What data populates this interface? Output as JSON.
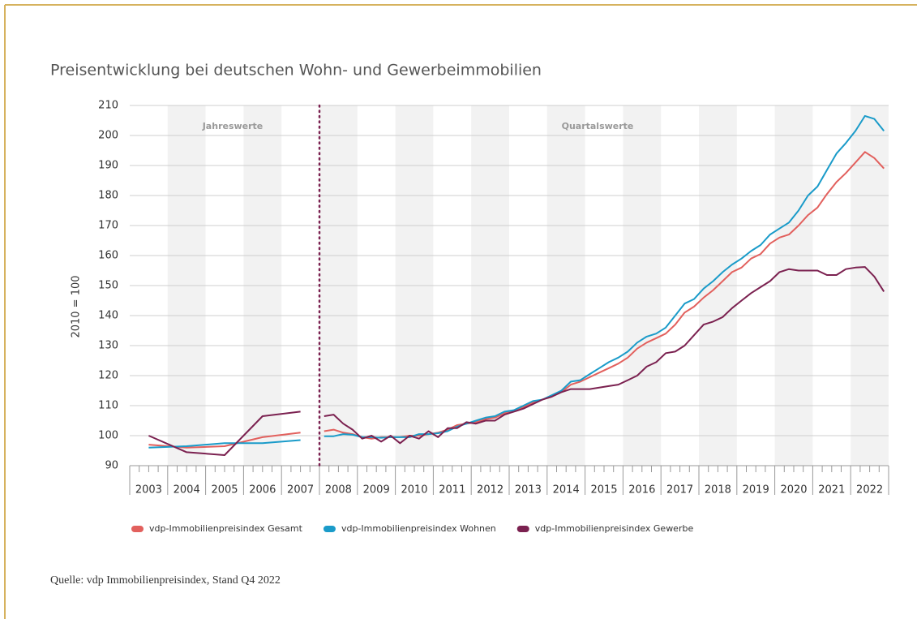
{
  "chart_data": {
    "type": "line",
    "title": "Preisentwicklung bei deutschen Wohn- und Gewerbeimmobilien",
    "y_label": "2010 = 100",
    "annotations": [
      "Jahreswerte",
      "Quartalswerte"
    ],
    "source": "Quelle: vdp Immobilienpreisindex, Stand Q4 2022",
    "xlim": [
      2003,
      2023
    ],
    "xticks": [
      {
        "value": 2003.5,
        "label": "2003"
      },
      {
        "value": 2004.5,
        "label": "2004"
      },
      {
        "value": 2005.5,
        "label": "2005"
      },
      {
        "value": 2006.5,
        "label": "2006"
      },
      {
        "value": 2007.5,
        "label": "2007"
      },
      {
        "value": 2008.5,
        "label": "2008"
      },
      {
        "value": 2009.5,
        "label": "2009"
      },
      {
        "value": 2010.5,
        "label": "2010"
      },
      {
        "value": 2011.5,
        "label": "2011"
      },
      {
        "value": 2012.5,
        "label": "2012"
      },
      {
        "value": 2013.5,
        "label": "2013"
      },
      {
        "value": 2014.5,
        "label": "2014"
      },
      {
        "value": 2015.5,
        "label": "2015"
      },
      {
        "value": 2016.5,
        "label": "2016"
      },
      {
        "value": 2017.5,
        "label": "2017"
      },
      {
        "value": 2018.5,
        "label": "2018"
      },
      {
        "value": 2019.5,
        "label": "2019"
      },
      {
        "value": 2020.5,
        "label": "2020"
      },
      {
        "value": 2021.5,
        "label": "2021"
      },
      {
        "value": 2022.5,
        "label": "2022"
      }
    ],
    "ylim": [
      90,
      210
    ],
    "yticks": [
      90,
      100,
      110,
      120,
      130,
      140,
      150,
      160,
      170,
      180,
      190,
      200,
      210
    ],
    "grid": true,
    "x": [
      2003.5,
      2004.5,
      2005.5,
      2006.5,
      2007.5,
      2008,
      2008.125,
      2008.375,
      2008.625,
      2008.875,
      2009.125,
      2009.375,
      2009.625,
      2009.875,
      2010.125,
      2010.375,
      2010.625,
      2010.875,
      2011.125,
      2011.375,
      2011.625,
      2011.875,
      2012.125,
      2012.375,
      2012.625,
      2012.875,
      2013.125,
      2013.375,
      2013.625,
      2013.875,
      2014.125,
      2014.375,
      2014.625,
      2014.875,
      2015.125,
      2015.375,
      2015.625,
      2015.875,
      2016.125,
      2016.375,
      2016.625,
      2016.875,
      2017.125,
      2017.375,
      2017.625,
      2017.875,
      2018.125,
      2018.375,
      2018.625,
      2018.875,
      2019.125,
      2019.375,
      2019.625,
      2019.875,
      2020.125,
      2020.375,
      2020.625,
      2020.875,
      2021.125,
      2021.375,
      2021.625,
      2021.875,
      2022.125,
      2022.375,
      2022.625,
      2022.875
    ],
    "series": [
      {
        "name": "vdp-Immobilienpreisindex Gesamt",
        "color": "#e2605d",
        "values": [
          97,
          96,
          96.5,
          99.5,
          101,
          null,
          101.5,
          102,
          101,
          100.5,
          99.5,
          99,
          99.5,
          99.5,
          99.5,
          100,
          100,
          100.5,
          101,
          102,
          103.5,
          104,
          104.5,
          105.5,
          106,
          107.5,
          108.5,
          109.5,
          111,
          112,
          113,
          114.5,
          117,
          118,
          119.5,
          121,
          122.5,
          124,
          126,
          129,
          131,
          132.5,
          134,
          137,
          141,
          143,
          146,
          148.5,
          151.5,
          154.5,
          156,
          159,
          160.5,
          164,
          166,
          167,
          170,
          173.5,
          176,
          180.5,
          184.5,
          187.5,
          191,
          194.5,
          192.5,
          189
        ]
      },
      {
        "name": "vdp-Immobilienpreisindex Wohnen",
        "color": "#1a9bc9",
        "values": [
          96,
          96.5,
          97.5,
          97.5,
          98.5,
          null,
          99.8,
          99.8,
          100.5,
          100.3,
          99.5,
          99.5,
          99.3,
          99.5,
          99.5,
          99.5,
          100.5,
          100.5,
          100.8,
          101.5,
          103,
          104,
          105,
          106,
          106.5,
          108,
          108.5,
          110,
          111.5,
          112,
          113.5,
          115,
          118,
          118.5,
          120.5,
          122.5,
          124.5,
          126,
          128,
          131,
          133,
          134,
          136,
          140,
          144,
          145.5,
          149,
          151.5,
          154.5,
          157,
          159,
          161.5,
          163.5,
          167,
          169,
          171,
          175,
          180,
          183,
          188.5,
          194,
          197.5,
          201.5,
          206.5,
          205.5,
          201.5
        ]
      },
      {
        "name": "vdp-Immobilienpreisindex Gewerbe",
        "color": "#7b2150",
        "values": [
          100,
          94.5,
          93.5,
          106.5,
          108,
          null,
          106.5,
          107,
          104,
          102,
          99,
          100,
          98,
          100,
          97.5,
          100,
          99,
          101.5,
          99.5,
          102.5,
          102.5,
          104.5,
          104,
          105,
          105,
          107,
          108,
          109,
          110.5,
          112,
          113,
          114.5,
          115.5,
          115.5,
          115.5,
          116,
          116.5,
          117,
          118.5,
          120,
          123,
          124.5,
          127.5,
          128,
          130,
          133.5,
          137,
          138,
          139.5,
          142.5,
          145,
          147.5,
          149.5,
          151.5,
          154.5,
          155.5,
          155,
          155,
          155,
          153.5,
          153.5,
          155.5,
          156,
          156.2,
          153,
          148
        ]
      }
    ]
  }
}
